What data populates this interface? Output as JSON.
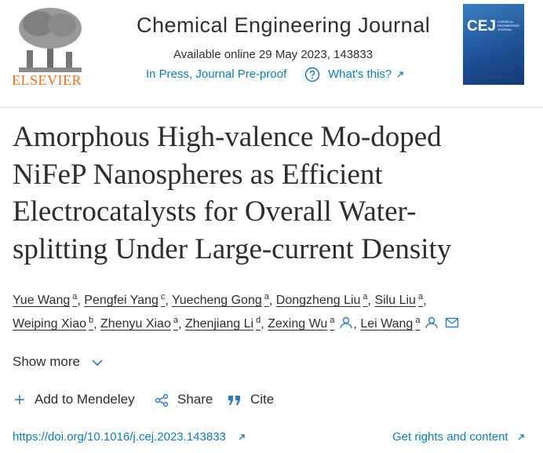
{
  "header": {
    "publisher": "ELSEVIER",
    "journal": "Chemical Engineering Journal",
    "availability": "Available online 29 May 2023, 143833",
    "status": "In Press, Journal Pre-proof",
    "help": "What's this?",
    "cover_title": "CEJ",
    "cover_subtitle": "CHEMICAL ENGINEERING JOURNAL"
  },
  "article": {
    "title_lines": [
      "Amorphous High-valence Mo-doped",
      "NiFeP Nanospheres as Efficient",
      "Electrocatalysts for Overall Water-",
      "splitting Under Large-current Density"
    ],
    "separator": ",",
    "author_lines": [
      [
        {
          "name": "Yue Wang",
          "aff": "a"
        },
        {
          "name": "Pengfei Yang",
          "aff": "c"
        },
        {
          "name": "Yuecheng Gong",
          "aff": "a"
        },
        {
          "name": "Dongzheng Liu",
          "aff": "a"
        },
        {
          "name": "Silu Liu",
          "aff": "a"
        }
      ],
      [
        {
          "name": "Weiping Xiao",
          "aff": "b"
        },
        {
          "name": "Zhenyu Xiao",
          "aff": "a"
        },
        {
          "name": "Zhenjiang Li",
          "aff": "d"
        },
        {
          "name": "Zexing Wu",
          "aff": "a"
        },
        {
          "name": "Lei Wang",
          "aff": "a"
        }
      ]
    ],
    "show_more": "Show more",
    "actions": [
      "Add to Mendeley",
      "Share",
      "Cite"
    ],
    "doi": "https://doi.org/10.1016/j.cej.2023.143833",
    "rights": "Get rights and content"
  }
}
